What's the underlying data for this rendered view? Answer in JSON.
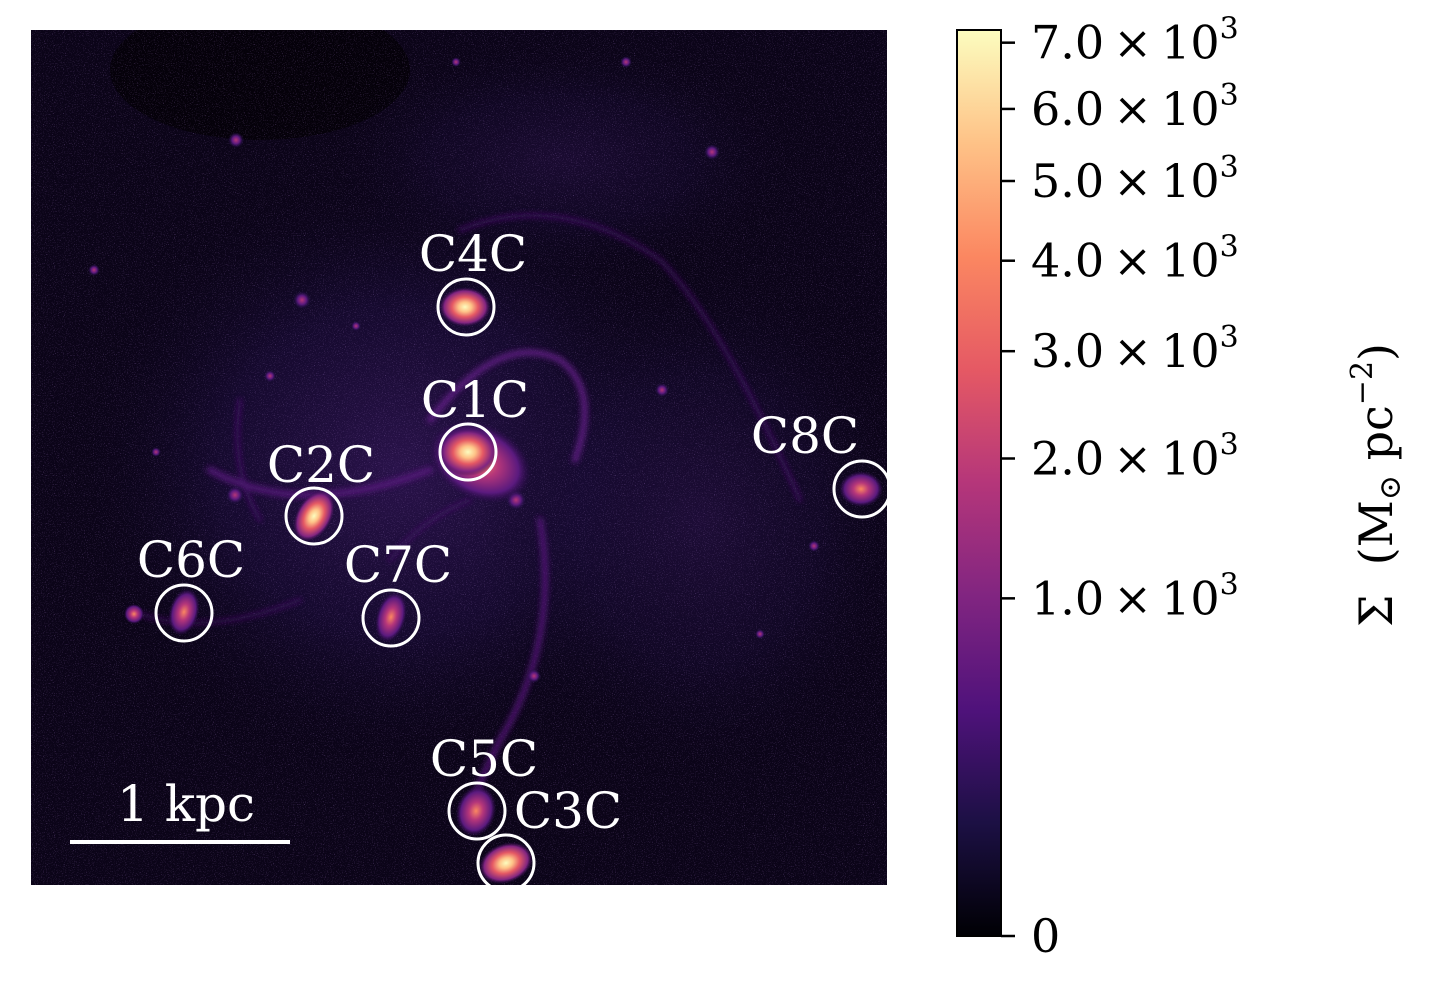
{
  "image": {
    "scalebar": {
      "label": "1 kpc"
    },
    "clumps": [
      {
        "id": "c4c",
        "label": "C4C"
      },
      {
        "id": "c1c",
        "label": "C1C"
      },
      {
        "id": "c2c",
        "label": "C2C"
      },
      {
        "id": "c8c",
        "label": "C8C"
      },
      {
        "id": "c6c",
        "label": "C6C"
      },
      {
        "id": "c7c",
        "label": "C7C"
      },
      {
        "id": "c5c",
        "label": "C5C"
      },
      {
        "id": "c3c",
        "label": "C3C"
      }
    ]
  },
  "colorbar": {
    "colormap": "magma",
    "scale": "square-root",
    "range": [
      0,
      7200
    ],
    "ticks": [
      {
        "value": 7000,
        "mantissa": "7.0",
        "exponent": "3"
      },
      {
        "value": 6000,
        "mantissa": "6.0",
        "exponent": "3"
      },
      {
        "value": 5000,
        "mantissa": "5.0",
        "exponent": "3"
      },
      {
        "value": 4000,
        "mantissa": "4.0",
        "exponent": "3"
      },
      {
        "value": 3000,
        "mantissa": "3.0",
        "exponent": "3"
      },
      {
        "value": 2000,
        "mantissa": "2.0",
        "exponent": "3"
      },
      {
        "value": 1000,
        "mantissa": "1.0",
        "exponent": "3"
      },
      {
        "value": 0,
        "plain": "0"
      }
    ],
    "label": {
      "symbol": "Σ",
      "unit_open": "(M",
      "unit_sub": "⊙",
      "unit_mid": " pc",
      "unit_sup": "−2",
      "unit_close": ")"
    }
  },
  "colors": {
    "background": "#000004",
    "marker": "#ffffff",
    "colormap_stops": [
      "#000004",
      "#1c1044",
      "#4f127b",
      "#812581",
      "#b5367a",
      "#e55964",
      "#fb8761",
      "#fec287",
      "#fcfdbf"
    ]
  }
}
